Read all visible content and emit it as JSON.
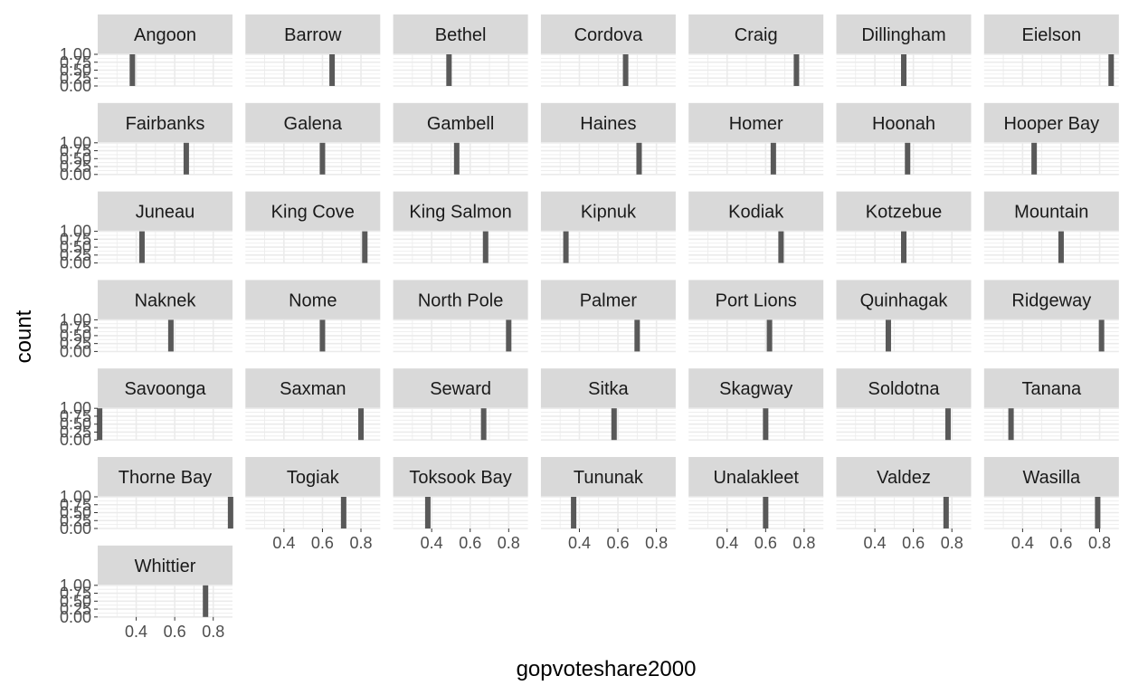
{
  "chart_data": {
    "type": "histogram",
    "facet_wrap": true,
    "ncol": 7,
    "xlabel": "gopvoteshare2000",
    "ylabel": "count",
    "xlim": [
      0.2,
      0.9
    ],
    "ylim": [
      0,
      1
    ],
    "x_ticks": [
      "0.4",
      "0.6",
      "0.8"
    ],
    "y_ticks": [
      "0.00",
      "0.25",
      "0.50",
      "0.75",
      "1.00"
    ],
    "bar_color": "#595959",
    "panel_bg": "#ffffff",
    "strip_bg": "#d9d9d9",
    "grid_color": "#ebebeb",
    "panels": [
      {
        "name": "Angoon",
        "x": 0.38,
        "count": 1
      },
      {
        "name": "Barrow",
        "x": 0.65,
        "count": 1
      },
      {
        "name": "Bethel",
        "x": 0.49,
        "count": 1
      },
      {
        "name": "Cordova",
        "x": 0.64,
        "count": 1
      },
      {
        "name": "Craig",
        "x": 0.76,
        "count": 1
      },
      {
        "name": "Dillingham",
        "x": 0.55,
        "count": 1
      },
      {
        "name": "Eielson",
        "x": 0.86,
        "count": 1
      },
      {
        "name": "Fairbanks",
        "x": 0.66,
        "count": 1
      },
      {
        "name": "Galena",
        "x": 0.6,
        "count": 1
      },
      {
        "name": "Gambell",
        "x": 0.53,
        "count": 1
      },
      {
        "name": "Haines",
        "x": 0.71,
        "count": 1
      },
      {
        "name": "Homer",
        "x": 0.64,
        "count": 1
      },
      {
        "name": "Hoonah",
        "x": 0.57,
        "count": 1
      },
      {
        "name": "Hooper Bay",
        "x": 0.46,
        "count": 1
      },
      {
        "name": "Juneau",
        "x": 0.43,
        "count": 1
      },
      {
        "name": "King Cove",
        "x": 0.82,
        "count": 1
      },
      {
        "name": "King Salmon",
        "x": 0.68,
        "count": 1
      },
      {
        "name": "Kipnuk",
        "x": 0.33,
        "count": 1
      },
      {
        "name": "Kodiak",
        "x": 0.68,
        "count": 1
      },
      {
        "name": "Kotzebue",
        "x": 0.55,
        "count": 1
      },
      {
        "name": "Mountain",
        "x": 0.6,
        "count": 1
      },
      {
        "name": "Naknek",
        "x": 0.58,
        "count": 1
      },
      {
        "name": "Nome",
        "x": 0.6,
        "count": 1
      },
      {
        "name": "North Pole",
        "x": 0.8,
        "count": 1
      },
      {
        "name": "Palmer",
        "x": 0.7,
        "count": 1
      },
      {
        "name": "Port Lions",
        "x": 0.62,
        "count": 1
      },
      {
        "name": "Quinhagak",
        "x": 0.47,
        "count": 1
      },
      {
        "name": "Ridgeway",
        "x": 0.81,
        "count": 1
      },
      {
        "name": "Savoonga",
        "x": 0.21,
        "count": 1
      },
      {
        "name": "Saxman",
        "x": 0.8,
        "count": 1
      },
      {
        "name": "Seward",
        "x": 0.67,
        "count": 1
      },
      {
        "name": "Sitka",
        "x": 0.58,
        "count": 1
      },
      {
        "name": "Skagway",
        "x": 0.6,
        "count": 1
      },
      {
        "name": "Soldotna",
        "x": 0.78,
        "count": 1
      },
      {
        "name": "Tanana",
        "x": 0.34,
        "count": 1
      },
      {
        "name": "Thorne Bay",
        "x": 0.89,
        "count": 1
      },
      {
        "name": "Togiak",
        "x": 0.71,
        "count": 1
      },
      {
        "name": "Toksook Bay",
        "x": 0.38,
        "count": 1
      },
      {
        "name": "Tununak",
        "x": 0.37,
        "count": 1
      },
      {
        "name": "Unalakleet",
        "x": 0.6,
        "count": 1
      },
      {
        "name": "Valdez",
        "x": 0.77,
        "count": 1
      },
      {
        "name": "Wasilla",
        "x": 0.79,
        "count": 1
      },
      {
        "name": "Whittier",
        "x": 0.76,
        "count": 1
      }
    ]
  }
}
